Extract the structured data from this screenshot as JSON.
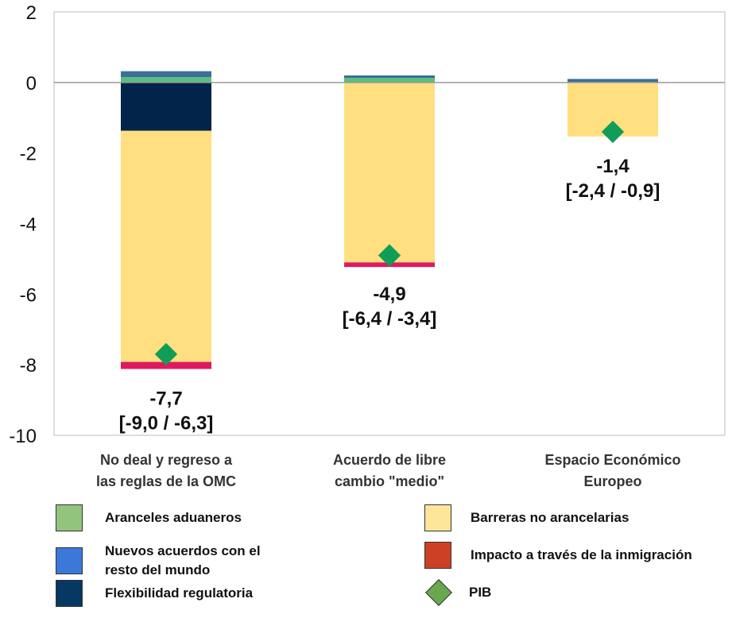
{
  "chart_data": {
    "type": "bar",
    "stacked": true,
    "categories": [
      "No deal y regreso a las reglas de la OMC",
      "Acuerdo de libre cambio \"medio\"",
      "Espacio Económico Europeo"
    ],
    "category_lines": [
      [
        "No deal y regreso a",
        "las reglas de la OMC"
      ],
      [
        "Acuerdo de libre",
        "cambio \"medio\""
      ],
      [
        "Espacio Económico",
        "Europeo"
      ]
    ],
    "series": [
      {
        "name": "Aranceles aduaneros",
        "color": "#57c07d",
        "legend_color": "#93c47d",
        "values": [
          0.15,
          0.13,
          0.0
        ]
      },
      {
        "name": "Nuevos acuerdos con el resto del mundo",
        "color": "#3d6f99",
        "legend_color": "#3c78d8",
        "values": [
          0.17,
          0.07,
          0.1
        ]
      },
      {
        "name": "Flexibilidad regulatoria",
        "color": "#02244a",
        "legend_color": "#073763",
        "values": [
          -1.37,
          0.0,
          0.0
        ]
      },
      {
        "name": "Barreras no arancelarias",
        "color": "#ffdf80",
        "legend_color": "#ffe599",
        "values": [
          -6.55,
          -5.1,
          -1.53
        ]
      },
      {
        "name": "Impacto a través de la inmigración",
        "color": "#e0195f",
        "legend_color": "#cc4125",
        "values": [
          -0.2,
          -0.13,
          0.0
        ]
      }
    ],
    "pib": {
      "name": "PIB",
      "color": "#0f9d58",
      "legend_color": "#6aa84f",
      "values": [
        -7.7,
        -4.9,
        -1.4
      ]
    },
    "pib_labels": [
      "-7,7",
      "-4,9",
      "-1,4"
    ],
    "range_labels": [
      "[-9,0  /  -6,3]",
      "[-6,4  /  -3,4]",
      "[-2,4  /  -0,9]"
    ],
    "yticks": [
      "2",
      "0",
      "-2",
      "-4",
      "-6",
      "-8",
      "-10"
    ],
    "ytick_values": [
      2,
      0,
      -2,
      -4,
      -6,
      -8,
      -10
    ],
    "ylim": [
      -10,
      2
    ],
    "title": "",
    "xlabel": "",
    "ylabel": "",
    "legend_position": "bottom"
  }
}
